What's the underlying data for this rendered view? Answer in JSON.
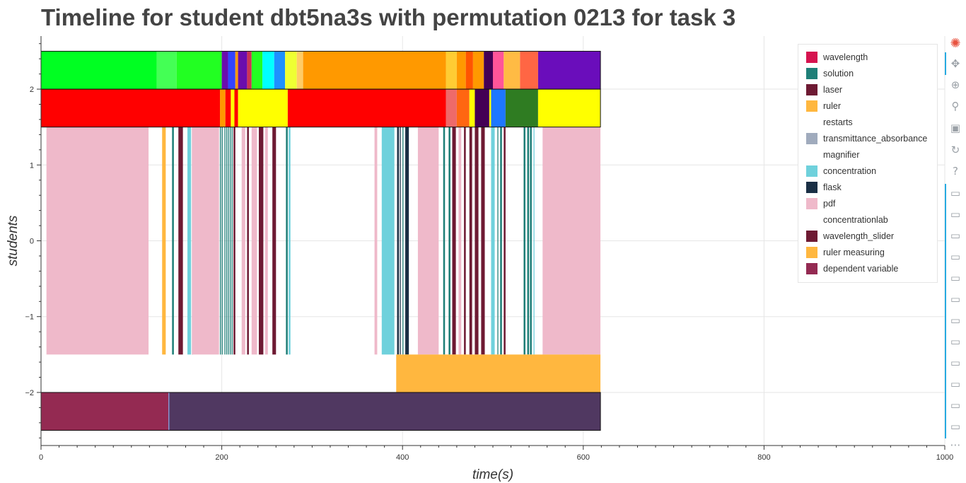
{
  "title": "Timeline for student dbt5na3s with permutation 0213 for task 3",
  "chart_data": {
    "type": "timeline",
    "title": "Timeline for student dbt5na3s with permutation 0213 for task 3",
    "xlabel": "time(s)",
    "ylabel": "students",
    "xlim": [
      0,
      1000
    ],
    "ylim": [
      -2.7,
      2.7
    ],
    "xticks": [
      0,
      200,
      400,
      600,
      800,
      1000
    ],
    "xtick_labels": [
      "0",
      "200",
      "400",
      "600",
      "800",
      "1000"
    ],
    "yticks": [
      -2,
      -1,
      0,
      1,
      2
    ],
    "ytick_labels": [
      "−2",
      "−1",
      "0",
      "1",
      "2"
    ],
    "grid": true,
    "legend_position": "top-right",
    "legend": [
      {
        "label": "wavelength",
        "color": "#d6134f"
      },
      {
        "label": "solution",
        "color": "#1f7f78"
      },
      {
        "label": "laser",
        "color": "#6e1a33"
      },
      {
        "label": "ruler",
        "color": "#ffb73f"
      },
      {
        "label": "restarts",
        "color": ""
      },
      {
        "label": "transmittance_absorbance",
        "color": "#a0abbd"
      },
      {
        "label": "magnifier",
        "color": ""
      },
      {
        "label": "concentration",
        "color": "#6fd1dc"
      },
      {
        "label": "flask",
        "color": "#1a2f45"
      },
      {
        "label": "pdf",
        "color": "#efb9ca"
      },
      {
        "label": "concentrationlab",
        "color": ""
      },
      {
        "label": "wavelength_slider",
        "color": "#6e1a33"
      },
      {
        "label": "ruler measuring",
        "color": "#ffb73f"
      },
      {
        "label": "dependent variable",
        "color": "#942a52"
      }
    ],
    "rows": [
      {
        "name": "top-band",
        "y0": 2.0,
        "y1": 2.5,
        "segments": [
          {
            "start": 0,
            "end": 128,
            "color": "#00ff22"
          },
          {
            "start": 128,
            "end": 150,
            "color": "#44ff55"
          },
          {
            "start": 150,
            "end": 200,
            "color": "#22ff22"
          },
          {
            "start": 200,
            "end": 207,
            "color": "#6a0dad"
          },
          {
            "start": 207,
            "end": 215,
            "color": "#3344ff"
          },
          {
            "start": 215,
            "end": 218,
            "color": "#ff9900"
          },
          {
            "start": 218,
            "end": 228,
            "color": "#6a0dad"
          },
          {
            "start": 228,
            "end": 233,
            "color": "#cc3355"
          },
          {
            "start": 233,
            "end": 245,
            "color": "#22ff22"
          },
          {
            "start": 245,
            "end": 258,
            "color": "#00ffff"
          },
          {
            "start": 258,
            "end": 270,
            "color": "#1e90ff"
          },
          {
            "start": 270,
            "end": 283,
            "color": "#eeff33"
          },
          {
            "start": 283,
            "end": 290,
            "color": "#ffcc66"
          },
          {
            "start": 290,
            "end": 448,
            "color": "#ff9900"
          },
          {
            "start": 448,
            "end": 460,
            "color": "#ffcc33"
          },
          {
            "start": 460,
            "end": 470,
            "color": "#ff9900"
          },
          {
            "start": 470,
            "end": 478,
            "color": "#ff5500"
          },
          {
            "start": 478,
            "end": 490,
            "color": "#ff9900"
          },
          {
            "start": 490,
            "end": 500,
            "color": "#440055"
          },
          {
            "start": 500,
            "end": 512,
            "color": "#ff5599"
          },
          {
            "start": 512,
            "end": 530,
            "color": "#ffbb44"
          },
          {
            "start": 530,
            "end": 550,
            "color": "#ff6644"
          },
          {
            "start": 550,
            "end": 619,
            "color": "#6a0dbb"
          }
        ]
      },
      {
        "name": "second-band",
        "y0": 1.5,
        "y1": 2.0,
        "segments": [
          {
            "start": 0,
            "end": 198,
            "color": "#ff0000"
          },
          {
            "start": 198,
            "end": 204,
            "color": "#ff9900"
          },
          {
            "start": 204,
            "end": 210,
            "color": "#ff0000"
          },
          {
            "start": 210,
            "end": 214,
            "color": "#ffff00"
          },
          {
            "start": 214,
            "end": 218,
            "color": "#ff0000"
          },
          {
            "start": 218,
            "end": 273,
            "color": "#ffff00"
          },
          {
            "start": 273,
            "end": 448,
            "color": "#ff0000"
          },
          {
            "start": 448,
            "end": 460,
            "color": "#ee6a6a"
          },
          {
            "start": 460,
            "end": 474,
            "color": "#ff6611"
          },
          {
            "start": 474,
            "end": 480,
            "color": "#ffff00"
          },
          {
            "start": 480,
            "end": 496,
            "color": "#440055"
          },
          {
            "start": 496,
            "end": 498,
            "color": "#ffff00"
          },
          {
            "start": 498,
            "end": 514,
            "color": "#1e77ff"
          },
          {
            "start": 514,
            "end": 550,
            "color": "#2f7c22"
          },
          {
            "start": 550,
            "end": 619,
            "color": "#ffff00"
          }
        ]
      },
      {
        "name": "activity-band",
        "y0": -1.5,
        "y1": 1.5,
        "segments": [
          {
            "start": 6,
            "end": 119,
            "color": "#efb9ca"
          },
          {
            "start": 134,
            "end": 138,
            "color": "#ffb73f"
          },
          {
            "start": 145,
            "end": 147,
            "color": "#1f7f78"
          },
          {
            "start": 152,
            "end": 157,
            "color": "#6e1a33"
          },
          {
            "start": 162,
            "end": 166,
            "color": "#6fd1dc"
          },
          {
            "start": 167,
            "end": 168,
            "color": "#1f7f78"
          },
          {
            "start": 167,
            "end": 197,
            "color": "#efb9ca"
          },
          {
            "start": 198,
            "end": 199,
            "color": "#1f7f78"
          },
          {
            "start": 200,
            "end": 201,
            "color": "#1f7f78"
          },
          {
            "start": 203,
            "end": 204,
            "color": "#1f7f78"
          },
          {
            "start": 205,
            "end": 206,
            "color": "#1f7f78"
          },
          {
            "start": 207,
            "end": 208,
            "color": "#1f7f78"
          },
          {
            "start": 209,
            "end": 210,
            "color": "#1f7f78"
          },
          {
            "start": 211,
            "end": 212,
            "color": "#1f7f78"
          },
          {
            "start": 213,
            "end": 215,
            "color": "#6e1a33"
          },
          {
            "start": 222,
            "end": 226,
            "color": "#efb9ca"
          },
          {
            "start": 228,
            "end": 230,
            "color": "#6e1a33"
          },
          {
            "start": 233,
            "end": 239,
            "color": "#efb9ca"
          },
          {
            "start": 241,
            "end": 246,
            "color": "#6e1a33"
          },
          {
            "start": 248,
            "end": 251,
            "color": "#efb9ca"
          },
          {
            "start": 256,
            "end": 260,
            "color": "#6e1a33"
          },
          {
            "start": 271,
            "end": 273,
            "color": "#1f7f78"
          },
          {
            "start": 274,
            "end": 276,
            "color": "#6fd1dc"
          },
          {
            "start": 369,
            "end": 372,
            "color": "#efb9ca"
          },
          {
            "start": 377,
            "end": 391,
            "color": "#6fd1dc"
          },
          {
            "start": 394,
            "end": 396,
            "color": "#1a2f45"
          },
          {
            "start": 397,
            "end": 398,
            "color": "#1a2f45"
          },
          {
            "start": 400,
            "end": 401,
            "color": "#1f7f78"
          },
          {
            "start": 403,
            "end": 407,
            "color": "#1a2f45"
          },
          {
            "start": 417,
            "end": 440,
            "color": "#efb9ca"
          },
          {
            "start": 445,
            "end": 447,
            "color": "#1f7f78"
          },
          {
            "start": 451,
            "end": 453,
            "color": "#1f7f78"
          },
          {
            "start": 455,
            "end": 459,
            "color": "#6e1a33"
          },
          {
            "start": 462,
            "end": 465,
            "color": "#efb9ca"
          },
          {
            "start": 468,
            "end": 470,
            "color": "#6e1a33"
          },
          {
            "start": 474,
            "end": 477,
            "color": "#6e1a33"
          },
          {
            "start": 480,
            "end": 484,
            "color": "#6e1a33"
          },
          {
            "start": 487,
            "end": 491,
            "color": "#6e1a33"
          },
          {
            "start": 498,
            "end": 502,
            "color": "#6fd1dc"
          },
          {
            "start": 505,
            "end": 506,
            "color": "#1f7f78"
          },
          {
            "start": 508,
            "end": 510,
            "color": "#1f7f78"
          },
          {
            "start": 512,
            "end": 514,
            "color": "#6e1a33"
          },
          {
            "start": 534,
            "end": 536,
            "color": "#1f7f78"
          },
          {
            "start": 538,
            "end": 540,
            "color": "#1f7f78"
          },
          {
            "start": 541,
            "end": 543,
            "color": "#1f7f78"
          },
          {
            "start": 545,
            "end": 546,
            "color": "#6fd1dc"
          },
          {
            "start": 555,
            "end": 619,
            "color": "#efb9ca"
          }
        ]
      },
      {
        "name": "ruler-band",
        "y0": -2.0,
        "y1": -1.5,
        "segments": [
          {
            "start": 393,
            "end": 619,
            "color": "#ffb73f"
          }
        ]
      },
      {
        "name": "bottom-band",
        "y0": -2.5,
        "y1": -2.0,
        "segments": [
          {
            "start": 0,
            "end": 141,
            "color": "#942a52"
          },
          {
            "start": 141,
            "end": 142,
            "color": "#7b8fd1"
          },
          {
            "start": 142,
            "end": 619,
            "color": "#503861"
          }
        ]
      }
    ],
    "outline_rows": [
      {
        "y0": 2.0,
        "y1": 2.5,
        "start": 0,
        "end": 619
      },
      {
        "y0": 1.5,
        "y1": 2.0,
        "start": 0,
        "end": 619
      },
      {
        "y0": -2.5,
        "y1": -2.0,
        "start": 0,
        "end": 619
      }
    ]
  },
  "toolbar": [
    {
      "name": "bokeh-logo-icon",
      "glyph": "✺"
    },
    {
      "name": "pan-icon",
      "glyph": "✥"
    },
    {
      "name": "box-zoom-icon",
      "glyph": "⊕"
    },
    {
      "name": "wheel-zoom-icon",
      "glyph": "⚲"
    },
    {
      "name": "save-icon",
      "glyph": "▣"
    },
    {
      "name": "reset-icon",
      "glyph": "↻"
    },
    {
      "name": "help-icon",
      "glyph": "?"
    },
    {
      "name": "hover-icon-1",
      "glyph": "▭"
    },
    {
      "name": "hover-icon-2",
      "glyph": "▭"
    },
    {
      "name": "hover-icon-3",
      "glyph": "▭"
    },
    {
      "name": "hover-icon-4",
      "glyph": "▭"
    },
    {
      "name": "hover-icon-5",
      "glyph": "▭"
    },
    {
      "name": "hover-icon-6",
      "glyph": "▭"
    },
    {
      "name": "hover-icon-7",
      "glyph": "▭"
    },
    {
      "name": "hover-icon-8",
      "glyph": "▭"
    },
    {
      "name": "hover-icon-9",
      "glyph": "▭"
    },
    {
      "name": "hover-icon-10",
      "glyph": "▭"
    },
    {
      "name": "hover-icon-11",
      "glyph": "▭"
    },
    {
      "name": "hover-icon-12",
      "glyph": "▭"
    }
  ],
  "toolbar_more": "⋯"
}
